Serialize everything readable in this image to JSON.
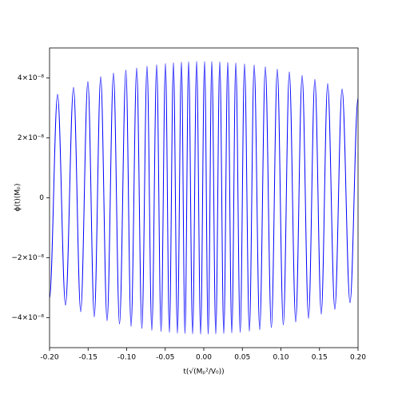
{
  "chart_data": {
    "type": "line",
    "x_label": "t(√(Mₚ²/V₀))",
    "y_label": "ϕ(t)(Mₚ)",
    "color": "#0000ff",
    "grid": false,
    "xlim": [
      -0.2,
      0.2
    ],
    "ylim": [
      -5e-08,
      5e-08
    ],
    "xticks": [
      {
        "value": -0.2,
        "label": "-0.20"
      },
      -0.15,
      {
        "value": -0.1,
        "label": "-0.10"
      },
      -0.05,
      {
        "value": 0,
        "label": "0.00"
      },
      0.05,
      {
        "value": 0.1,
        "label": "0.10"
      },
      0.15,
      {
        "value": 0.2,
        "label": "0.20"
      }
    ],
    "yticks": [
      {
        "value": -4e-08,
        "label": "−4×10⁻⁸"
      },
      {
        "value": -2e-08,
        "label": "−2×10⁻⁸"
      },
      0,
      {
        "value": 2e-08,
        "label": "2×10⁻⁸"
      },
      {
        "value": 4e-08,
        "label": "4×10⁻⁸"
      }
    ],
    "x": [
      -0.2,
      -0.1896,
      -0.1793,
      -0.1689,
      -0.1596,
      -0.1503,
      -0.142,
      -0.1337,
      -0.1254,
      -0.1171,
      -0.1093,
      -0.101,
      -0.0943,
      -0.087,
      -0.0803,
      -0.0736,
      -0.0674,
      -0.0611,
      -0.0554,
      -0.0497,
      -0.0446,
      -0.0394,
      -0.0342,
      -0.029,
      -0.0244,
      -0.0197,
      -0.0145,
      -0.0093,
      -0.0041,
      0.001,
      0.0057,
      0.0104,
      0.0155,
      0.0207,
      0.0259,
      0.0311,
      0.0363,
      0.0415,
      0.0472,
      0.0528,
      0.0591,
      0.0653,
      0.0725,
      0.0798,
      0.0876,
      0.0953,
      0.1031,
      0.1109,
      0.1192,
      0.1275,
      0.1358,
      0.144,
      0.1523,
      0.1606,
      0.1699,
      0.1793,
      0.1896,
      0.2
    ],
    "values": [
      -3.35e-08,
      3.45e-08,
      -3.58e-08,
      3.68e-08,
      -3.8e-08,
      3.88e-08,
      -3.97e-08,
      4.04e-08,
      -4.1e-08,
      4.16e-08,
      -4.21e-08,
      4.26e-08,
      -4.29e-08,
      4.33e-08,
      -4.36e-08,
      4.39e-08,
      -4.42e-08,
      4.44e-08,
      -4.46e-08,
      4.48e-08,
      -4.49e-08,
      4.51e-08,
      -4.52e-08,
      4.53e-08,
      -4.53e-08,
      4.54e-08,
      -4.54e-08,
      4.55e-08,
      -4.55e-08,
      4.55e-08,
      -4.55e-08,
      4.55e-08,
      -4.54e-08,
      4.54e-08,
      -4.53e-08,
      4.52e-08,
      -4.51e-08,
      4.5e-08,
      -4.49e-08,
      4.47e-08,
      -4.45e-08,
      4.43e-08,
      -4.4e-08,
      4.37e-08,
      -4.33e-08,
      4.29e-08,
      -4.24e-08,
      4.2e-08,
      -4.14e-08,
      4.08e-08,
      -4.02e-08,
      3.95e-08,
      -3.88e-08,
      3.81e-08,
      -3.72e-08,
      3.63e-08,
      -3.5e-08,
      3.33e-08
    ]
  }
}
